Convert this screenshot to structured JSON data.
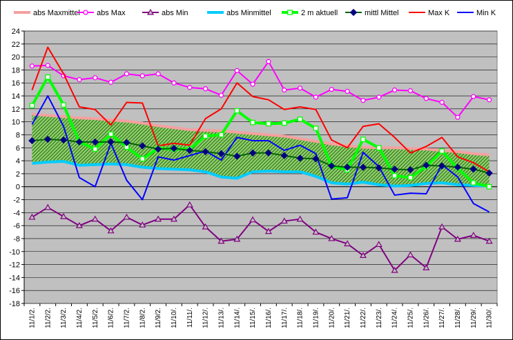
{
  "chart_data": {
    "type": "line",
    "title": "",
    "xlabel": "",
    "ylabel": "",
    "ylim": [
      -18,
      24
    ],
    "y_step": 2,
    "grid": true,
    "legend_position": "top",
    "plot_background": "#c0c0c0",
    "categories": [
      "11/1/2.",
      "11/2/2.",
      "11/3/2.",
      "11/4/2.",
      "11/5/2.",
      "11/6/2.",
      "11/7/2.",
      "11/8/2.",
      "11/9/2.",
      "11/10/.",
      "11/11/.",
      "11/12/.",
      "11/13/.",
      "11/14/.",
      "11/15/.",
      "11/16/.",
      "11/17/.",
      "11/18/.",
      "11/19/.",
      "11/20/.",
      "11/21/.",
      "11/22/.",
      "11/23/.",
      "11/24/.",
      "11/25/.",
      "11/26/.",
      "11/27/.",
      "11/28/.",
      "11/29/.",
      "11/30/."
    ],
    "band": {
      "fill": "#8fcf6a",
      "stripe": "#2e6e1c",
      "upper_series": "abs Maxmittel",
      "lower_series": "abs Minmittel"
    },
    "series": [
      {
        "name": "abs Maxmittel",
        "color": "#f4a0a0",
        "width": 4,
        "marker": "none",
        "values": [
          11.2,
          11.0,
          10.8,
          10.6,
          10.5,
          10.3,
          10.1,
          9.8,
          9.4,
          9.1,
          8.8,
          8.7,
          8.6,
          8.4,
          8.2,
          8.0,
          7.8,
          7.4,
          7.0,
          6.6,
          6.3,
          6.1,
          6.0,
          6.0,
          5.9,
          5.8,
          5.6,
          5.4,
          5.1,
          4.9
        ]
      },
      {
        "name": "abs Max",
        "color": "#ff00ff",
        "width": 2,
        "marker": "circle",
        "values": [
          18.6,
          18.7,
          17.1,
          16.5,
          16.8,
          16.1,
          17.4,
          17.1,
          17.4,
          16.0,
          15.3,
          15.1,
          14.1,
          17.9,
          15.8,
          19.3,
          14.9,
          15.2,
          13.8,
          15.0,
          14.7,
          13.3,
          13.8,
          14.9,
          14.8,
          13.6,
          13.0,
          10.7,
          13.9,
          13.4
        ]
      },
      {
        "name": "abs Min",
        "color": "#800080",
        "width": 2,
        "marker": "triangle",
        "values": [
          -4.7,
          -3.2,
          -4.6,
          -6.0,
          -5.0,
          -6.8,
          -4.7,
          -5.9,
          -5.0,
          -5.0,
          -2.8,
          -6.2,
          -8.4,
          -8.1,
          -5.1,
          -6.9,
          -5.3,
          -5.0,
          -7.0,
          -8.0,
          -8.8,
          -10.6,
          -8.9,
          -12.9,
          -10.5,
          -12.5,
          -6.2,
          -8.1,
          -7.5,
          -8.4
        ]
      },
      {
        "name": "abs Minmittel",
        "color": "#00ccff",
        "width": 4,
        "marker": "none",
        "values": [
          3.6,
          3.8,
          3.9,
          3.3,
          3.4,
          3.5,
          3.4,
          3.0,
          2.8,
          2.7,
          2.6,
          2.3,
          1.5,
          1.3,
          2.3,
          2.4,
          2.3,
          2.3,
          1.6,
          0.6,
          0.4,
          0.7,
          0.3,
          0.1,
          0.2,
          0.5,
          0.6,
          0.3,
          0.2,
          0.1
        ]
      },
      {
        "name": "2 m aktuell",
        "color": "#00ff00",
        "width": 4,
        "marker": "square",
        "values": [
          12.5,
          16.9,
          12.6,
          6.9,
          5.8,
          8.1,
          6.1,
          4.3,
          5.9,
          5.8,
          5.8,
          7.8,
          8.0,
          11.7,
          9.9,
          9.7,
          9.8,
          10.4,
          9.0,
          3.2,
          2.6,
          7.3,
          6.0,
          1.7,
          1.4,
          3.1,
          5.5,
          2.8,
          0.6,
          0.0
        ]
      },
      {
        "name": "mittl Mittel",
        "color": "#006400",
        "width": 2,
        "marker": "diamond",
        "values": [
          7.1,
          7.3,
          7.2,
          6.9,
          6.9,
          6.9,
          6.8,
          6.3,
          5.8,
          5.9,
          5.6,
          5.4,
          5.1,
          4.7,
          5.2,
          5.2,
          4.8,
          4.4,
          4.3,
          3.2,
          3.0,
          3.0,
          2.9,
          2.7,
          2.6,
          3.3,
          3.2,
          3.0,
          2.7,
          2.1
        ]
      },
      {
        "name": "Max K",
        "color": "#ff0000",
        "width": 2,
        "marker": "none",
        "values": [
          14.9,
          21.5,
          17.4,
          12.3,
          11.9,
          9.5,
          13.0,
          12.9,
          6.3,
          6.7,
          6.4,
          10.5,
          12.0,
          16.0,
          13.9,
          13.4,
          11.9,
          12.3,
          11.9,
          7.2,
          6.0,
          9.3,
          9.7,
          7.6,
          5.2,
          6.2,
          7.6,
          4.6,
          3.7,
          2.3
        ]
      },
      {
        "name": "Min K",
        "color": "#0000ff",
        "width": 2,
        "marker": "none",
        "values": [
          9.6,
          14.0,
          9.3,
          1.4,
          0.0,
          6.7,
          1.0,
          -2.0,
          4.6,
          4.1,
          4.8,
          5.5,
          4.1,
          7.6,
          7.1,
          7.1,
          5.6,
          6.4,
          5.1,
          -1.9,
          -1.7,
          5.3,
          3.1,
          -1.3,
          -1.0,
          -1.1,
          3.4,
          1.5,
          -2.6,
          -3.9
        ]
      }
    ]
  }
}
